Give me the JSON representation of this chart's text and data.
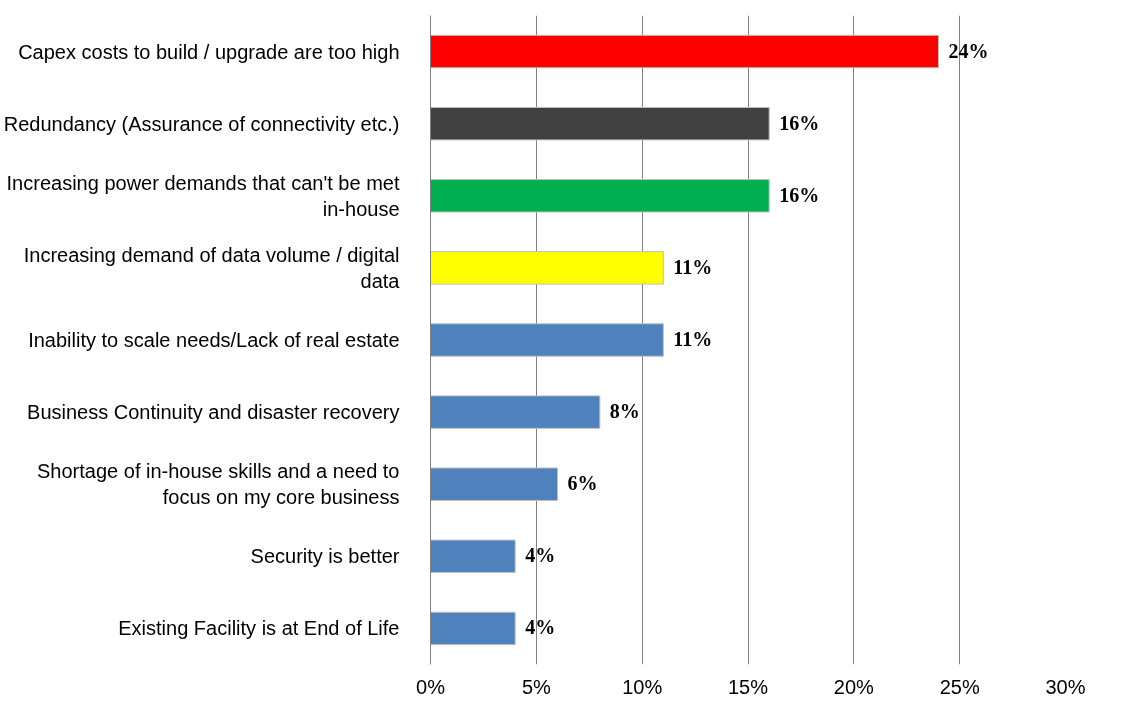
{
  "chart_data": {
    "type": "bar",
    "orientation": "horizontal",
    "categories": [
      "Capex costs to build / upgrade are too high",
      "Redundancy (Assurance of connectivity etc.)",
      "Increasing power demands that can't be met in-house",
      "Increasing demand of data volume / digital data",
      "Inability to scale needs/Lack of real estate",
      "Business Continuity and disaster recovery",
      "Shortage of in-house skills and a need to focus on my core business",
      "Security is better",
      "Existing Facility is at End of Life"
    ],
    "values": [
      24,
      16,
      16,
      11,
      11,
      8,
      6,
      4,
      4
    ],
    "colors": [
      "#ff0000",
      "#404040",
      "#00b050",
      "#ffff00",
      "#4f81bd",
      "#4f81bd",
      "#4f81bd",
      "#4f81bd",
      "#4f81bd"
    ],
    "value_labels": [
      "24%",
      "16%",
      "16%",
      "11%",
      "11%",
      "8%",
      "6%",
      "4%",
      "4%"
    ],
    "xlim": [
      0,
      30
    ],
    "xticks": [
      {
        "value": 0,
        "label": "0%"
      },
      {
        "value": 5,
        "label": "5%"
      },
      {
        "value": 10,
        "label": "10%"
      },
      {
        "value": 15,
        "label": "15%"
      },
      {
        "value": 20,
        "label": "20%"
      },
      {
        "value": 25,
        "label": "25%"
      },
      {
        "value": 30,
        "label": "30%"
      }
    ],
    "grid": "x"
  }
}
